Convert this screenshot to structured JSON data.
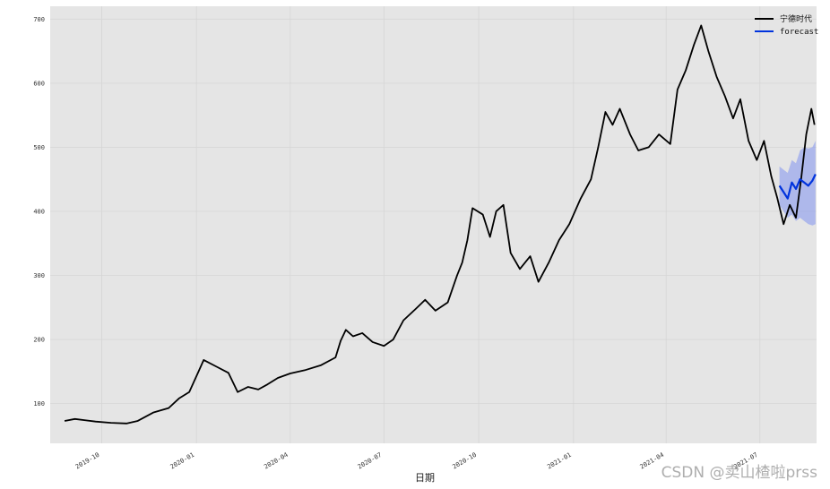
{
  "chart_data": {
    "type": "line",
    "xlabel": "日期",
    "ylabel": "",
    "ylim": [
      38,
      720
    ],
    "y_ticks": [
      100,
      200,
      300,
      400,
      500,
      600,
      700
    ],
    "x_range": [
      "2019-08-12",
      "2021-08-25"
    ],
    "x_ticks": [
      {
        "date": "2019-10-01",
        "label": "2019-10"
      },
      {
        "date": "2020-01-01",
        "label": "2020-01"
      },
      {
        "date": "2020-04-01",
        "label": "2020-04"
      },
      {
        "date": "2020-07-01",
        "label": "2020-07"
      },
      {
        "date": "2020-10-01",
        "label": "2020-10"
      },
      {
        "date": "2021-01-01",
        "label": "2021-01"
      },
      {
        "date": "2021-04-01",
        "label": "2021-04"
      },
      {
        "date": "2021-07-01",
        "label": "2021-07"
      }
    ],
    "grid": true,
    "legend_position": "top-right",
    "series": [
      {
        "name": "宁德时代",
        "color": "#000000",
        "points": [
          [
            "2019-08-26",
            73
          ],
          [
            "2019-09-05",
            76
          ],
          [
            "2019-09-15",
            74
          ],
          [
            "2019-09-25",
            72
          ],
          [
            "2019-10-10",
            70
          ],
          [
            "2019-10-25",
            69
          ],
          [
            "2019-11-05",
            73
          ],
          [
            "2019-11-20",
            86
          ],
          [
            "2019-12-05",
            93
          ],
          [
            "2019-12-15",
            108
          ],
          [
            "2019-12-25",
            118
          ],
          [
            "2020-01-03",
            150
          ],
          [
            "2020-01-08",
            168
          ],
          [
            "2020-01-20",
            158
          ],
          [
            "2020-02-01",
            148
          ],
          [
            "2020-02-10",
            118
          ],
          [
            "2020-02-20",
            126
          ],
          [
            "2020-03-01",
            122
          ],
          [
            "2020-03-10",
            130
          ],
          [
            "2020-03-20",
            140
          ],
          [
            "2020-04-01",
            147
          ],
          [
            "2020-04-15",
            152
          ],
          [
            "2020-05-01",
            160
          ],
          [
            "2020-05-15",
            172
          ],
          [
            "2020-05-20",
            198
          ],
          [
            "2020-05-25",
            215
          ],
          [
            "2020-06-01",
            205
          ],
          [
            "2020-06-10",
            210
          ],
          [
            "2020-06-20",
            196
          ],
          [
            "2020-07-01",
            190
          ],
          [
            "2020-07-10",
            200
          ],
          [
            "2020-07-20",
            230
          ],
          [
            "2020-08-01",
            248
          ],
          [
            "2020-08-10",
            262
          ],
          [
            "2020-08-20",
            245
          ],
          [
            "2020-09-01",
            258
          ],
          [
            "2020-09-10",
            300
          ],
          [
            "2020-09-15",
            320
          ],
          [
            "2020-09-20",
            355
          ],
          [
            "2020-09-25",
            405
          ],
          [
            "2020-10-05",
            395
          ],
          [
            "2020-10-12",
            360
          ],
          [
            "2020-10-18",
            400
          ],
          [
            "2020-10-25",
            410
          ],
          [
            "2020-11-01",
            335
          ],
          [
            "2020-11-10",
            310
          ],
          [
            "2020-11-20",
            330
          ],
          [
            "2020-11-28",
            290
          ],
          [
            "2020-12-08",
            320
          ],
          [
            "2020-12-18",
            355
          ],
          [
            "2020-12-28",
            380
          ],
          [
            "2021-01-08",
            420
          ],
          [
            "2021-01-18",
            450
          ],
          [
            "2021-01-25",
            500
          ],
          [
            "2021-02-01",
            555
          ],
          [
            "2021-02-08",
            535
          ],
          [
            "2021-02-15",
            560
          ],
          [
            "2021-02-25",
            520
          ],
          [
            "2021-03-05",
            495
          ],
          [
            "2021-03-15",
            500
          ],
          [
            "2021-03-25",
            520
          ],
          [
            "2021-04-05",
            505
          ],
          [
            "2021-04-12",
            590
          ],
          [
            "2021-04-20",
            620
          ],
          [
            "2021-04-28",
            660
          ],
          [
            "2021-05-05",
            690
          ],
          [
            "2021-05-12",
            650
          ],
          [
            "2021-05-20",
            610
          ],
          [
            "2021-05-28",
            580
          ],
          [
            "2021-06-05",
            545
          ],
          [
            "2021-06-12",
            575
          ],
          [
            "2021-06-20",
            510
          ],
          [
            "2021-06-28",
            480
          ],
          [
            "2021-07-05",
            510
          ],
          [
            "2021-07-12",
            455
          ],
          [
            "2021-07-18",
            420
          ],
          [
            "2021-07-24",
            380
          ],
          [
            "2021-07-30",
            410
          ],
          [
            "2021-08-05",
            390
          ],
          [
            "2021-08-10",
            450
          ],
          [
            "2021-08-15",
            520
          ],
          [
            "2021-08-20",
            560
          ],
          [
            "2021-08-23",
            535
          ]
        ]
      },
      {
        "name": "forecast",
        "color": "#0033dd",
        "band_color": "#8899ee",
        "points": [
          [
            "2021-07-20",
            440
          ],
          [
            "2021-07-24",
            430
          ],
          [
            "2021-07-28",
            420
          ],
          [
            "2021-08-01",
            445
          ],
          [
            "2021-08-05",
            435
          ],
          [
            "2021-08-09",
            450
          ],
          [
            "2021-08-13",
            445
          ],
          [
            "2021-08-17",
            440
          ],
          [
            "2021-08-21",
            448
          ],
          [
            "2021-08-24",
            458
          ]
        ],
        "lower": [
          410,
          400,
          390,
          395,
          385,
          390,
          385,
          380,
          378,
          380
        ],
        "upper": [
          470,
          465,
          460,
          480,
          475,
          495,
          500,
          498,
          500,
          510
        ]
      }
    ]
  },
  "watermark": "CSDN @卖山楂啦prss"
}
